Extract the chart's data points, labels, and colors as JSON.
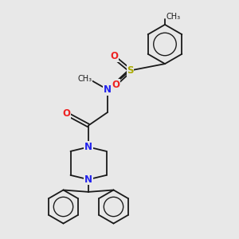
{
  "bg_color": "#e8e8e8",
  "bond_color": "#1a1a1a",
  "bond_width": 1.3,
  "atom_colors": {
    "N": "#2222ee",
    "O": "#ee2222",
    "S": "#aaaa00",
    "C": "#1a1a1a"
  },
  "figsize": [
    3.0,
    3.0
  ],
  "dpi": 100,
  "xlim": [
    0,
    10
  ],
  "ylim": [
    0,
    10
  ]
}
